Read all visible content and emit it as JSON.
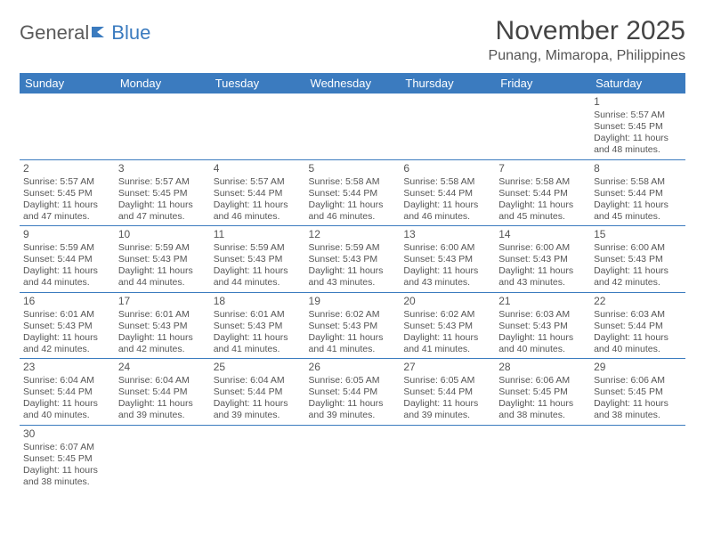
{
  "logo": {
    "word1": "General",
    "word2": "Blue"
  },
  "title": "November 2025",
  "location": "Punang, Mimaropa, Philippines",
  "colors": {
    "header_bg": "#3b7bbf",
    "header_text": "#ffffff",
    "text": "#555555",
    "rule": "#3b7bbf",
    "page_bg": "#ffffff"
  },
  "typography": {
    "title_fontsize": 30,
    "location_fontsize": 16,
    "weekday_fontsize": 13,
    "cell_fontsize": 10.5,
    "daynum_fontsize": 12
  },
  "weekdays": [
    "Sunday",
    "Monday",
    "Tuesday",
    "Wednesday",
    "Thursday",
    "Friday",
    "Saturday"
  ],
  "weeks": [
    [
      null,
      null,
      null,
      null,
      null,
      null,
      {
        "n": "1",
        "sunrise": "Sunrise: 5:57 AM",
        "sunset": "Sunset: 5:45 PM",
        "d1": "Daylight: 11 hours",
        "d2": "and 48 minutes."
      }
    ],
    [
      {
        "n": "2",
        "sunrise": "Sunrise: 5:57 AM",
        "sunset": "Sunset: 5:45 PM",
        "d1": "Daylight: 11 hours",
        "d2": "and 47 minutes."
      },
      {
        "n": "3",
        "sunrise": "Sunrise: 5:57 AM",
        "sunset": "Sunset: 5:45 PM",
        "d1": "Daylight: 11 hours",
        "d2": "and 47 minutes."
      },
      {
        "n": "4",
        "sunrise": "Sunrise: 5:57 AM",
        "sunset": "Sunset: 5:44 PM",
        "d1": "Daylight: 11 hours",
        "d2": "and 46 minutes."
      },
      {
        "n": "5",
        "sunrise": "Sunrise: 5:58 AM",
        "sunset": "Sunset: 5:44 PM",
        "d1": "Daylight: 11 hours",
        "d2": "and 46 minutes."
      },
      {
        "n": "6",
        "sunrise": "Sunrise: 5:58 AM",
        "sunset": "Sunset: 5:44 PM",
        "d1": "Daylight: 11 hours",
        "d2": "and 46 minutes."
      },
      {
        "n": "7",
        "sunrise": "Sunrise: 5:58 AM",
        "sunset": "Sunset: 5:44 PM",
        "d1": "Daylight: 11 hours",
        "d2": "and 45 minutes."
      },
      {
        "n": "8",
        "sunrise": "Sunrise: 5:58 AM",
        "sunset": "Sunset: 5:44 PM",
        "d1": "Daylight: 11 hours",
        "d2": "and 45 minutes."
      }
    ],
    [
      {
        "n": "9",
        "sunrise": "Sunrise: 5:59 AM",
        "sunset": "Sunset: 5:44 PM",
        "d1": "Daylight: 11 hours",
        "d2": "and 44 minutes."
      },
      {
        "n": "10",
        "sunrise": "Sunrise: 5:59 AM",
        "sunset": "Sunset: 5:43 PM",
        "d1": "Daylight: 11 hours",
        "d2": "and 44 minutes."
      },
      {
        "n": "11",
        "sunrise": "Sunrise: 5:59 AM",
        "sunset": "Sunset: 5:43 PM",
        "d1": "Daylight: 11 hours",
        "d2": "and 44 minutes."
      },
      {
        "n": "12",
        "sunrise": "Sunrise: 5:59 AM",
        "sunset": "Sunset: 5:43 PM",
        "d1": "Daylight: 11 hours",
        "d2": "and 43 minutes."
      },
      {
        "n": "13",
        "sunrise": "Sunrise: 6:00 AM",
        "sunset": "Sunset: 5:43 PM",
        "d1": "Daylight: 11 hours",
        "d2": "and 43 minutes."
      },
      {
        "n": "14",
        "sunrise": "Sunrise: 6:00 AM",
        "sunset": "Sunset: 5:43 PM",
        "d1": "Daylight: 11 hours",
        "d2": "and 43 minutes."
      },
      {
        "n": "15",
        "sunrise": "Sunrise: 6:00 AM",
        "sunset": "Sunset: 5:43 PM",
        "d1": "Daylight: 11 hours",
        "d2": "and 42 minutes."
      }
    ],
    [
      {
        "n": "16",
        "sunrise": "Sunrise: 6:01 AM",
        "sunset": "Sunset: 5:43 PM",
        "d1": "Daylight: 11 hours",
        "d2": "and 42 minutes."
      },
      {
        "n": "17",
        "sunrise": "Sunrise: 6:01 AM",
        "sunset": "Sunset: 5:43 PM",
        "d1": "Daylight: 11 hours",
        "d2": "and 42 minutes."
      },
      {
        "n": "18",
        "sunrise": "Sunrise: 6:01 AM",
        "sunset": "Sunset: 5:43 PM",
        "d1": "Daylight: 11 hours",
        "d2": "and 41 minutes."
      },
      {
        "n": "19",
        "sunrise": "Sunrise: 6:02 AM",
        "sunset": "Sunset: 5:43 PM",
        "d1": "Daylight: 11 hours",
        "d2": "and 41 minutes."
      },
      {
        "n": "20",
        "sunrise": "Sunrise: 6:02 AM",
        "sunset": "Sunset: 5:43 PM",
        "d1": "Daylight: 11 hours",
        "d2": "and 41 minutes."
      },
      {
        "n": "21",
        "sunrise": "Sunrise: 6:03 AM",
        "sunset": "Sunset: 5:43 PM",
        "d1": "Daylight: 11 hours",
        "d2": "and 40 minutes."
      },
      {
        "n": "22",
        "sunrise": "Sunrise: 6:03 AM",
        "sunset": "Sunset: 5:44 PM",
        "d1": "Daylight: 11 hours",
        "d2": "and 40 minutes."
      }
    ],
    [
      {
        "n": "23",
        "sunrise": "Sunrise: 6:04 AM",
        "sunset": "Sunset: 5:44 PM",
        "d1": "Daylight: 11 hours",
        "d2": "and 40 minutes."
      },
      {
        "n": "24",
        "sunrise": "Sunrise: 6:04 AM",
        "sunset": "Sunset: 5:44 PM",
        "d1": "Daylight: 11 hours",
        "d2": "and 39 minutes."
      },
      {
        "n": "25",
        "sunrise": "Sunrise: 6:04 AM",
        "sunset": "Sunset: 5:44 PM",
        "d1": "Daylight: 11 hours",
        "d2": "and 39 minutes."
      },
      {
        "n": "26",
        "sunrise": "Sunrise: 6:05 AM",
        "sunset": "Sunset: 5:44 PM",
        "d1": "Daylight: 11 hours",
        "d2": "and 39 minutes."
      },
      {
        "n": "27",
        "sunrise": "Sunrise: 6:05 AM",
        "sunset": "Sunset: 5:44 PM",
        "d1": "Daylight: 11 hours",
        "d2": "and 39 minutes."
      },
      {
        "n": "28",
        "sunrise": "Sunrise: 6:06 AM",
        "sunset": "Sunset: 5:45 PM",
        "d1": "Daylight: 11 hours",
        "d2": "and 38 minutes."
      },
      {
        "n": "29",
        "sunrise": "Sunrise: 6:06 AM",
        "sunset": "Sunset: 5:45 PM",
        "d1": "Daylight: 11 hours",
        "d2": "and 38 minutes."
      }
    ],
    [
      {
        "n": "30",
        "sunrise": "Sunrise: 6:07 AM",
        "sunset": "Sunset: 5:45 PM",
        "d1": "Daylight: 11 hours",
        "d2": "and 38 minutes."
      },
      null,
      null,
      null,
      null,
      null,
      null
    ]
  ]
}
